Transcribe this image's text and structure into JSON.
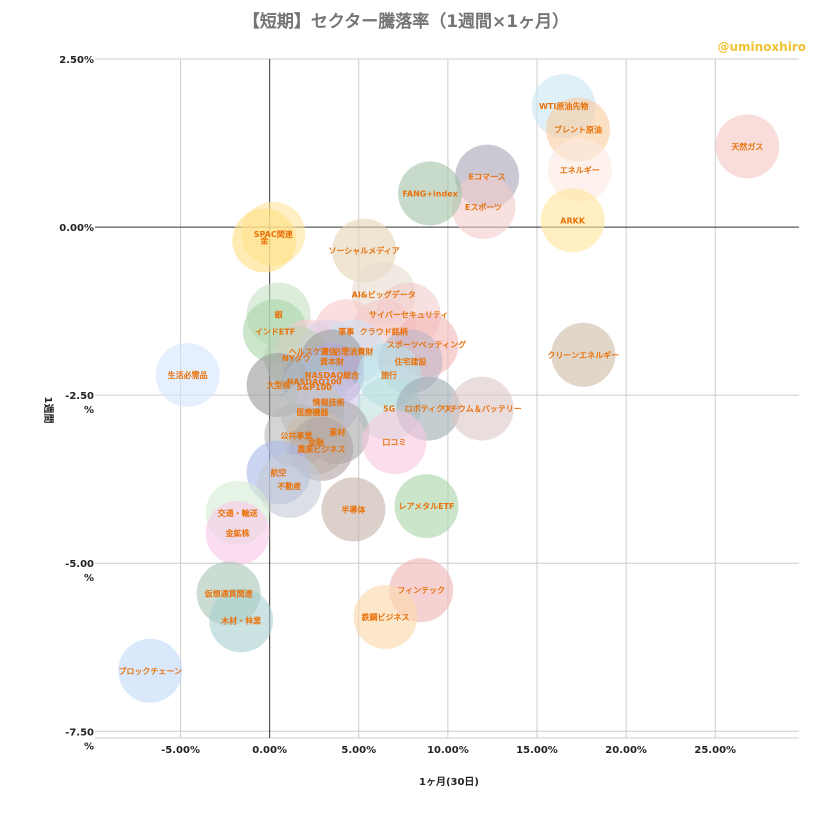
{
  "chart_data": {
    "type": "bubble",
    "title": "【短期】セクター騰落率（1週間×1ヶ月）",
    "credit": "@uminoxhiro",
    "xlabel": "1ヶ月(30日)",
    "ylabel": "1週間",
    "xlim": [
      -9.8,
      29.7
    ],
    "ylim": [
      -7.6,
      2.5
    ],
    "x_ticks": [
      {
        "value": -5,
        "label": "-5.00%"
      },
      {
        "value": 0,
        "label": "0.00%"
      },
      {
        "value": 5,
        "label": "5.00%"
      },
      {
        "value": 10,
        "label": "10.00%"
      },
      {
        "value": 15,
        "label": "15.00%"
      },
      {
        "value": 20,
        "label": "20.00%"
      },
      {
        "value": 25,
        "label": "25.00%"
      }
    ],
    "y_ticks": [
      {
        "value": 2.5,
        "label": "2.50%"
      },
      {
        "value": 0,
        "label": "0.00%"
      },
      {
        "value": -2.5,
        "label": "-2.50\n%"
      },
      {
        "value": -5,
        "label": "-5.00\n%"
      },
      {
        "value": -7.5,
        "label": "-7.50\n%"
      }
    ],
    "points": [
      {
        "name": "天然ガス",
        "x": 26.8,
        "y": 1.2,
        "color": "#f4c7c3"
      },
      {
        "name": "WTI原油先物",
        "x": 16.5,
        "y": 1.8,
        "color": "#c9e6f5"
      },
      {
        "name": "ブレント原油",
        "x": 17.3,
        "y": 1.45,
        "color": "#f9cb9c"
      },
      {
        "name": "エネルギー",
        "x": 17.4,
        "y": 0.85,
        "color": "#fde9e2"
      },
      {
        "name": "ARKK",
        "x": 17.0,
        "y": 0.1,
        "color": "#ffe599"
      },
      {
        "name": "Eコマース",
        "x": 12.2,
        "y": 0.75,
        "color": "#a9a3b5"
      },
      {
        "name": "Eスポーツ",
        "x": 12.0,
        "y": 0.3,
        "color": "#f4cccc"
      },
      {
        "name": "FANG+index",
        "x": 9.0,
        "y": 0.5,
        "color": "#a4c2a5"
      },
      {
        "name": "SPAC関連",
        "x": 0.2,
        "y": -0.1,
        "color": "#ffe599"
      },
      {
        "name": "金",
        "x": -0.3,
        "y": -0.2,
        "color": "#ffe082"
      },
      {
        "name": "ソーシャルメディア",
        "x": 5.3,
        "y": -0.35,
        "color": "#e6d2b5"
      },
      {
        "name": "AI&ビッグデータ",
        "x": 6.4,
        "y": -1.0,
        "color": "#e6dccf"
      },
      {
        "name": "サイバーセキュリティ",
        "x": 7.8,
        "y": -1.3,
        "color": "#f4cccc"
      },
      {
        "name": "銀",
        "x": 0.5,
        "y": -1.3,
        "color": "#c5e1c5"
      },
      {
        "name": "インドETF",
        "x": 0.3,
        "y": -1.55,
        "color": "#a8d5a8"
      },
      {
        "name": "軍事",
        "x": 4.3,
        "y": -1.55,
        "color": "#f8c8c8"
      },
      {
        "name": "クラウド銘柄",
        "x": 6.4,
        "y": -1.55,
        "color": "#f4cccc"
      },
      {
        "name": "スポーツベッティング",
        "x": 8.8,
        "y": -1.75,
        "color": "#f4b6b6"
      },
      {
        "name": "ヘルスケア",
        "x": 2.2,
        "y": -1.85,
        "color": "#f8c8d4"
      },
      {
        "name": "通信",
        "x": 3.3,
        "y": -1.85,
        "color": "#d9d2e9"
      },
      {
        "name": "必需消費財",
        "x": 4.7,
        "y": -1.85,
        "color": "#cfe2f3"
      },
      {
        "name": "NYダウ",
        "x": 1.5,
        "y": -1.95,
        "color": "#bcd4b8"
      },
      {
        "name": "資本財",
        "x": 3.5,
        "y": -2.0,
        "color": "#9e9e9e"
      },
      {
        "name": "住宅建設",
        "x": 7.9,
        "y": -2.0,
        "color": "#bdb6c7"
      },
      {
        "name": "クリーンエネルギー",
        "x": 17.6,
        "y": -1.9,
        "color": "#cdbba3"
      },
      {
        "name": "生活必需品",
        "x": -4.6,
        "y": -2.2,
        "color": "#d6e4fb"
      },
      {
        "name": "NASDAQ総合",
        "x": 3.5,
        "y": -2.2,
        "color": "#b4a7d6"
      },
      {
        "name": "NASDAQ100",
        "x": 2.5,
        "y": -2.3,
        "color": "#a3b7d9"
      },
      {
        "name": "旅行",
        "x": 6.7,
        "y": -2.2,
        "color": "#b7e1e8"
      },
      {
        "name": "大型株",
        "x": 0.5,
        "y": -2.35,
        "color": "#999999"
      },
      {
        "name": "S&P100",
        "x": 2.5,
        "y": -2.38,
        "color": "#b0bec5"
      },
      {
        "name": "情報技術",
        "x": 3.3,
        "y": -2.6,
        "color": "#d0c4ea"
      },
      {
        "name": "5G",
        "x": 6.7,
        "y": -2.7,
        "color": "#bde0dd"
      },
      {
        "name": "ロボティクス",
        "x": 8.9,
        "y": -2.7,
        "color": "#9eacb2"
      },
      {
        "name": "リチウム＆バッテリー",
        "x": 11.9,
        "y": -2.7,
        "color": "#dcc6c6"
      },
      {
        "name": "医療機器",
        "x": 2.4,
        "y": -2.75,
        "color": "#c4c4c4"
      },
      {
        "name": "素材",
        "x": 3.8,
        "y": -3.05,
        "color": "#a8a8a8"
      },
      {
        "name": "公共事業",
        "x": 1.5,
        "y": -3.1,
        "color": "#b8b8b8"
      },
      {
        "name": "金融",
        "x": 2.6,
        "y": -3.2,
        "color": "#ccbfa8"
      },
      {
        "name": "農業ビジネス",
        "x": 2.9,
        "y": -3.3,
        "color": "#b0a3a3"
      },
      {
        "name": "口コミ",
        "x": 7.0,
        "y": -3.2,
        "color": "#f8c8e0"
      },
      {
        "name": "航空",
        "x": 0.5,
        "y": -3.65,
        "color": "#a9b8e8"
      },
      {
        "name": "不動産",
        "x": 1.1,
        "y": -3.85,
        "color": "#c4cad3"
      },
      {
        "name": "半導体",
        "x": 4.7,
        "y": -4.2,
        "color": "#c4b0a8"
      },
      {
        "name": "レアメタルETF",
        "x": 8.8,
        "y": -4.15,
        "color": "#a9d4a9"
      },
      {
        "name": "交通・輸送",
        "x": -1.8,
        "y": -4.25,
        "color": "#d5ecd6"
      },
      {
        "name": "金鉱株",
        "x": -1.8,
        "y": -4.55,
        "color": "#f9c7e8"
      },
      {
        "name": "仮想通貨関連",
        "x": -2.3,
        "y": -5.45,
        "color": "#a8c6b6"
      },
      {
        "name": "フィンテック",
        "x": 8.5,
        "y": -5.4,
        "color": "#f0b3b3"
      },
      {
        "name": "木材・林業",
        "x": -1.6,
        "y": -5.85,
        "color": "#a8d0d0"
      },
      {
        "name": "鉄鋼ビジネス",
        "x": 6.5,
        "y": -5.8,
        "color": "#fbd7a8"
      },
      {
        "name": "ブロックチェーン",
        "x": -6.7,
        "y": -6.6,
        "color": "#c2d8f8"
      }
    ]
  }
}
